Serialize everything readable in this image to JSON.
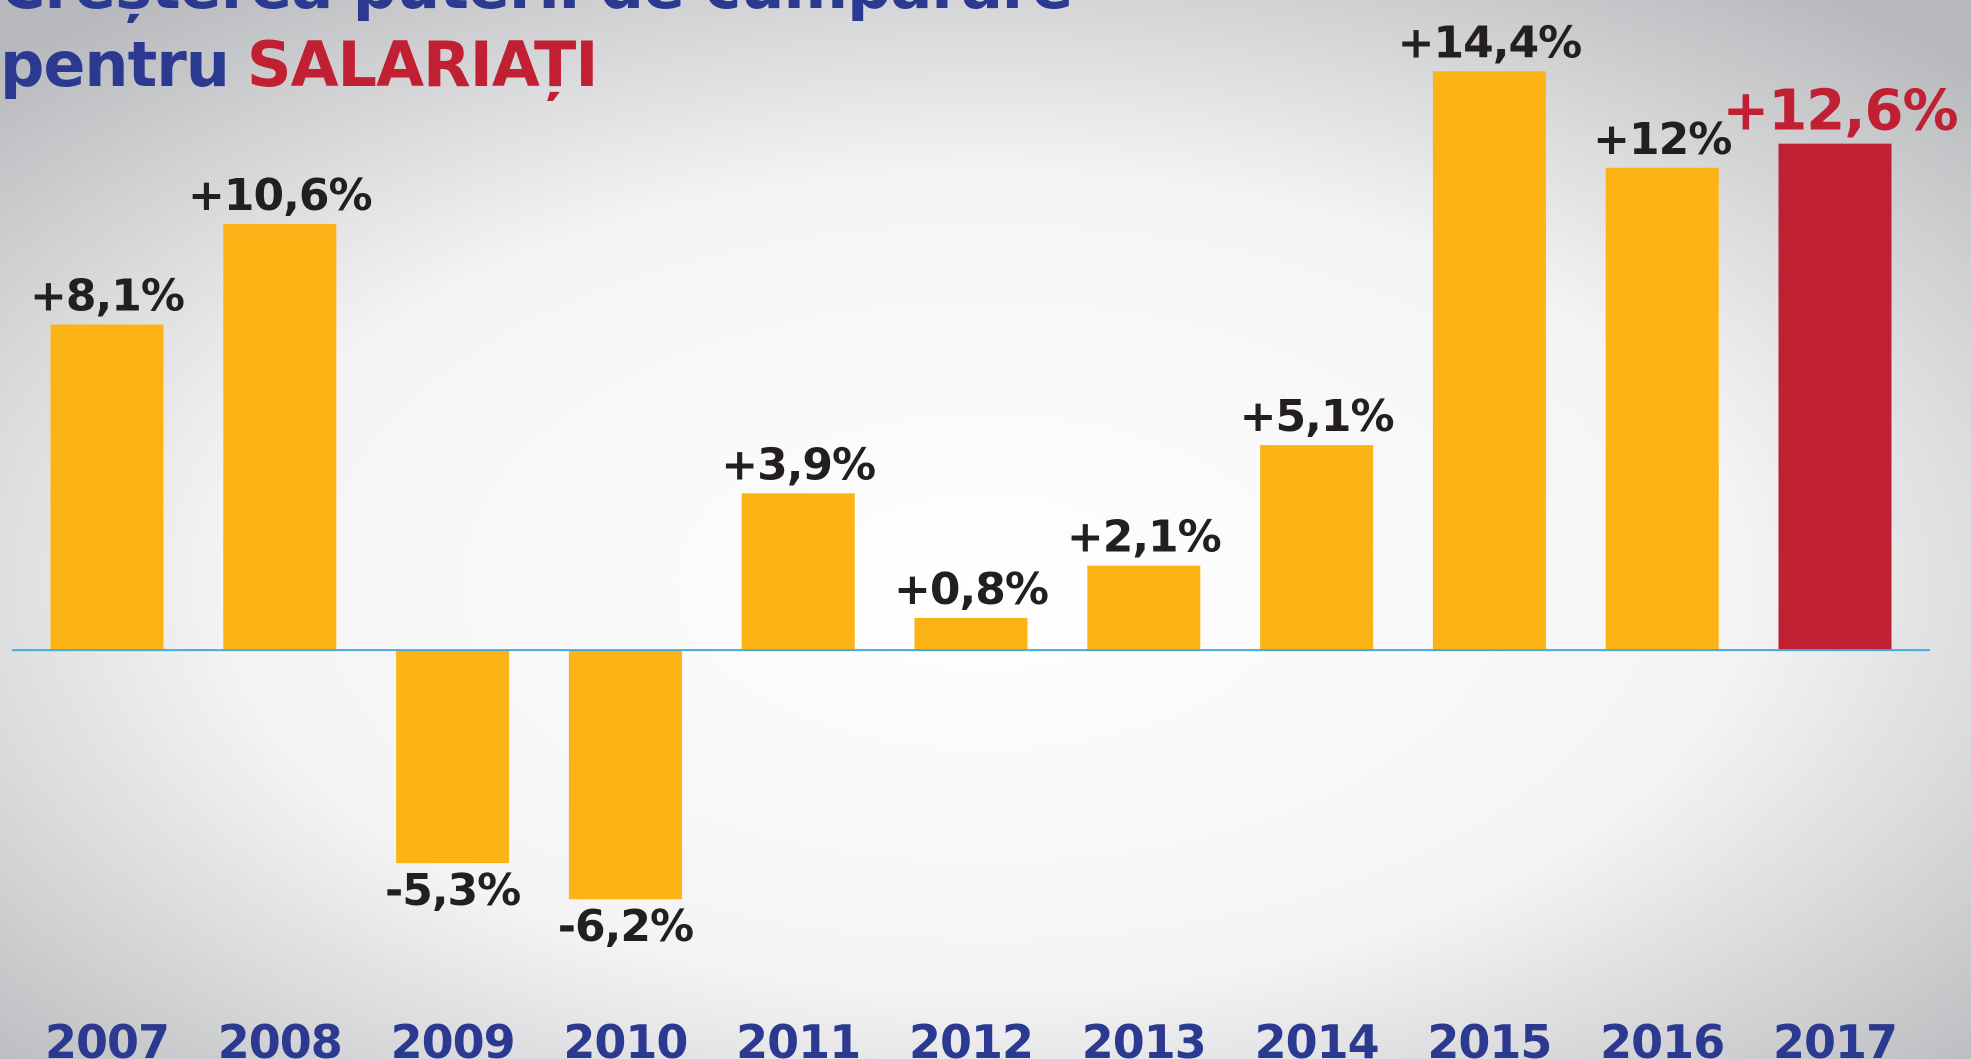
{
  "chart_data": {
    "type": "bar",
    "title_line1": "Creșterea puterii de cumpărare",
    "title_prefix": "pentru",
    "title_highlight": "SALARIAȚI",
    "categories": [
      "2007",
      "2008",
      "2009",
      "2010",
      "2011",
      "2012",
      "2013",
      "2014",
      "2015",
      "2016",
      "2017"
    ],
    "values": [
      8.1,
      10.6,
      -5.3,
      -6.2,
      3.9,
      0.8,
      2.1,
      5.1,
      14.4,
      12,
      12.6
    ],
    "value_labels": [
      "+8,1%",
      "+10,6%",
      "-5,3%",
      "-6,2%",
      "+3,9%",
      "+0,8%",
      "+2,1%",
      "+5,1%",
      "+14,4%",
      "+12%",
      "+12,6%"
    ],
    "colors": [
      "#fbb316",
      "#fbb316",
      "#fbb316",
      "#fbb316",
      "#fbb316",
      "#fbb316",
      "#fbb316",
      "#fbb316",
      "#fbb316",
      "#fbb316",
      "#c11f32"
    ],
    "label_colors": [
      "#231f20",
      "#231f20",
      "#231f20",
      "#231f20",
      "#231f20",
      "#231f20",
      "#231f20",
      "#231f20",
      "#231f20",
      "#231f20",
      "#c11f32"
    ],
    "ylim": [
      -10,
      16
    ]
  }
}
